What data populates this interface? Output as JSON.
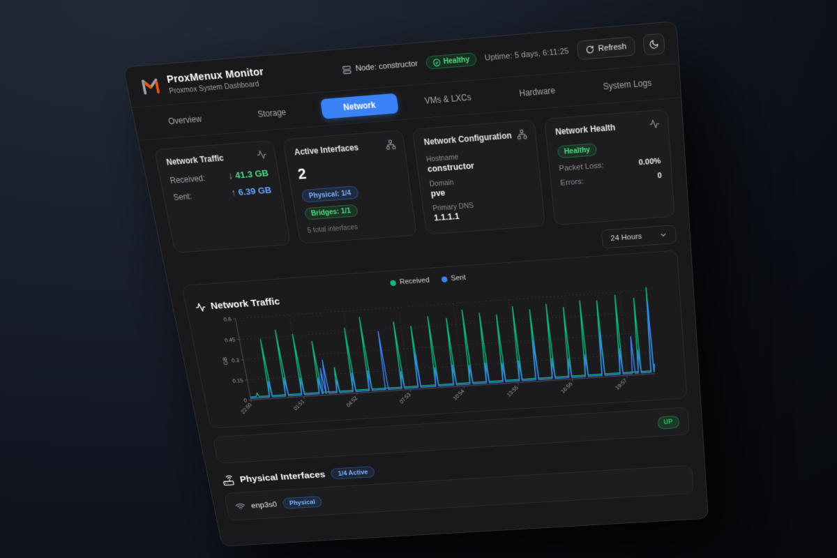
{
  "topbar": {
    "node_label": "Node: constructor",
    "health_badge": "Healthy",
    "uptime": "Uptime: 5 days, 6:11:25",
    "refresh_label": "Refresh"
  },
  "header": {
    "title": "ProxMenux Monitor",
    "subtitle": "Proxmox System Dashboard"
  },
  "tabs": [
    {
      "label": "Overview",
      "active": false
    },
    {
      "label": "Storage",
      "active": false
    },
    {
      "label": "Network",
      "active": true
    },
    {
      "label": "VMs & LXCs",
      "active": false
    },
    {
      "label": "Hardware",
      "active": false
    },
    {
      "label": "System Logs",
      "active": false
    }
  ],
  "cards": {
    "traffic": {
      "title": "Network Traffic",
      "received_label": "Received:",
      "received_value": "↓ 41.3 GB",
      "sent_label": "Sent:",
      "sent_value": "↑ 6.39 GB"
    },
    "interfaces": {
      "title": "Active Interfaces",
      "count": "2",
      "physical_badge": "Physical: 1/4",
      "bridges_badge": "Bridges: 1/1",
      "total_note": "5 total interfaces"
    },
    "config": {
      "title": "Network Configuration",
      "hostname_label": "Hostname",
      "hostname": "constructor",
      "domain_label": "Domain",
      "domain": "pve",
      "dns_label": "Primary DNS",
      "dns": "1.1.1.1"
    },
    "health": {
      "title": "Network Health",
      "status": "Healthy",
      "packet_loss_label": "Packet Loss:",
      "packet_loss": "0.00%",
      "errors_label": "Errors:",
      "errors": "0"
    }
  },
  "toolbar": {
    "time_range": "24 Hours"
  },
  "chart_data": {
    "type": "line",
    "title": "Network Traffic",
    "ylabel": "GB",
    "ylim": [
      0,
      0.6
    ],
    "yticks": [
      0,
      0.15,
      0.3,
      0.45,
      0.6
    ],
    "x_span_min": 1360,
    "xticks": [
      {
        "t": 0,
        "label": "22:50"
      },
      {
        "t": 181,
        "label": "01:51"
      },
      {
        "t": 362,
        "label": "04:52"
      },
      {
        "t": 543,
        "label": "07:53"
      },
      {
        "t": 724,
        "label": "10:54"
      },
      {
        "t": 905,
        "label": "13:55"
      },
      {
        "t": 1086,
        "label": "16:56"
      },
      {
        "t": 1267,
        "label": "19:57"
      }
    ],
    "grid": "dashed",
    "legend_position": "top-center",
    "series": [
      {
        "name": "Received",
        "color": "#10b981",
        "baseline": 0.022,
        "spikes": [
          {
            "t": 25,
            "v": 0.05
          },
          {
            "t": 70,
            "v": 0.44
          },
          {
            "t": 125,
            "v": 0.5
          },
          {
            "t": 180,
            "v": 0.46
          },
          {
            "t": 240,
            "v": 0.4
          },
          {
            "t": 300,
            "v": 0.2
          },
          {
            "t": 355,
            "v": 0.48
          },
          {
            "t": 410,
            "v": 0.55
          },
          {
            "t": 520,
            "v": 0.5
          },
          {
            "t": 575,
            "v": 0.46
          },
          {
            "t": 635,
            "v": 0.52
          },
          {
            "t": 695,
            "v": 0.5
          },
          {
            "t": 750,
            "v": 0.55
          },
          {
            "t": 805,
            "v": 0.52
          },
          {
            "t": 860,
            "v": 0.5
          },
          {
            "t": 915,
            "v": 0.55
          },
          {
            "t": 970,
            "v": 0.52
          },
          {
            "t": 1025,
            "v": 0.55
          },
          {
            "t": 1080,
            "v": 0.52
          },
          {
            "t": 1135,
            "v": 0.56
          },
          {
            "t": 1190,
            "v": 0.55
          },
          {
            "t": 1250,
            "v": 0.58
          },
          {
            "t": 1310,
            "v": 0.55
          },
          {
            "t": 1352,
            "v": 0.62
          }
        ]
      },
      {
        "name": "Sent",
        "color": "#3b82f6",
        "baseline": 0.012,
        "spikes": [
          {
            "t": 70,
            "v": 0.13
          },
          {
            "t": 125,
            "v": 0.15
          },
          {
            "t": 180,
            "v": 0.14
          },
          {
            "t": 240,
            "v": 0.13
          },
          {
            "t": 253,
            "v": 0.2
          },
          {
            "t": 264,
            "v": 0.26
          },
          {
            "t": 300,
            "v": 0.11
          },
          {
            "t": 355,
            "v": 0.15
          },
          {
            "t": 410,
            "v": 0.16
          },
          {
            "t": 465,
            "v": 0.44
          },
          {
            "t": 520,
            "v": 0.14
          },
          {
            "t": 575,
            "v": 0.27
          },
          {
            "t": 635,
            "v": 0.15
          },
          {
            "t": 695,
            "v": 0.16
          },
          {
            "t": 750,
            "v": 0.15
          },
          {
            "t": 805,
            "v": 0.16
          },
          {
            "t": 860,
            "v": 0.15
          },
          {
            "t": 915,
            "v": 0.16
          },
          {
            "t": 970,
            "v": 0.3
          },
          {
            "t": 1025,
            "v": 0.16
          },
          {
            "t": 1080,
            "v": 0.15
          },
          {
            "t": 1135,
            "v": 0.17
          },
          {
            "t": 1190,
            "v": 0.33
          },
          {
            "t": 1250,
            "v": 0.2
          },
          {
            "t": 1290,
            "v": 0.28
          },
          {
            "t": 1310,
            "v": 0.18
          },
          {
            "t": 1352,
            "v": 0.52
          }
        ]
      }
    ]
  },
  "status_row": {
    "up_badge": "UP"
  },
  "physical": {
    "title": "Physical Interfaces",
    "active_badge": "1/4 Active",
    "rows": [
      {
        "name": "enp3s0",
        "type_badge": "Physical"
      }
    ]
  },
  "colors": {
    "accent_blue": "#3b82f6",
    "status_green": "#22c55e",
    "logo_orange": "#ea580c",
    "logo_gray": "#9ca3af"
  }
}
